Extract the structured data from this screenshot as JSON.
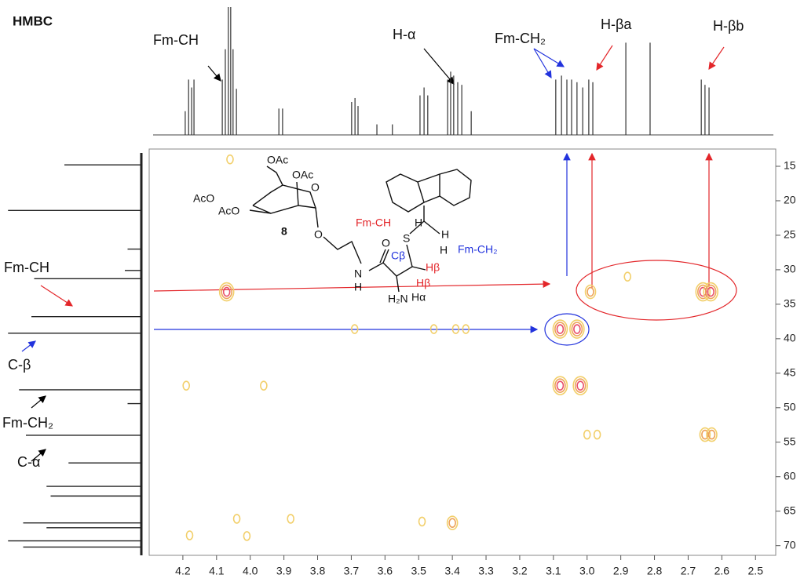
{
  "chart_data": {
    "type": "hmbc",
    "title": "HMBC",
    "xlim": [
      4.3,
      2.44
    ],
    "xticks": [
      4.2,
      4.1,
      {
        "value": 4,
        "label": "4.0"
      },
      3.9,
      3.8,
      3.7,
      3.6,
      3.5,
      3.4,
      3.3,
      3.2,
      3.1,
      {
        "value": 3,
        "label": "3.0"
      },
      2.9,
      2.8,
      2.7,
      2.6,
      2.5
    ],
    "ylim": [
      12.5,
      71.4
    ],
    "yticks": [
      15,
      20,
      25,
      30,
      35,
      40,
      45,
      50,
      55,
      60,
      65,
      70
    ],
    "contour_colors": [
      "#f2cf6a",
      "#eda25a",
      "#e8506a"
    ],
    "peaks": {
      "x": [
        4.06,
        4.07,
        3.08,
        3.03,
        2.99,
        2.656,
        2.633,
        2.88,
        3.69,
        3.455,
        3.39,
        3.36,
        4.19,
        3.96,
        3.08,
        3.02,
        3.0,
        2.97,
        2.65,
        2.63,
        4.04,
        3.88,
        3.49,
        3.4,
        4.18,
        4.01
      ],
      "y": [
        14.0,
        33.2,
        38.6,
        38.6,
        33.2,
        33.2,
        33.2,
        31.0,
        38.6,
        38.6,
        38.6,
        38.6,
        46.8,
        46.8,
        46.8,
        46.8,
        53.9,
        53.9,
        53.9,
        53.9,
        66.1,
        66.1,
        66.5,
        66.7,
        68.5,
        68.6
      ],
      "levels": [
        1,
        3,
        3,
        3,
        2,
        3,
        3,
        1,
        1,
        1,
        1,
        1,
        1,
        1,
        3,
        3,
        1,
        1,
        2,
        2,
        1,
        1,
        1,
        2,
        1,
        1
      ]
    },
    "proton_spectrum": {
      "x": [
        4.193,
        4.183,
        4.174,
        4.167,
        4.083,
        4.074,
        4.065,
        4.058,
        4.051,
        4.041,
        3.915,
        3.904,
        3.699,
        3.689,
        3.68,
        3.624,
        3.578,
        3.496,
        3.484,
        3.473,
        3.414,
        3.405,
        3.396,
        3.384,
        3.372,
        3.344,
        3.093,
        3.076,
        3.06,
        3.046,
        3.03,
        3.013,
        2.995,
        2.983,
        2.885,
        2.813,
        2.661,
        2.65,
        2.638
      ],
      "intensity": [
        0.18,
        0.42,
        0.36,
        0.42,
        0.42,
        0.65,
        0.97,
        0.97,
        0.65,
        0.35,
        0.2,
        0.2,
        0.25,
        0.28,
        0.22,
        0.08,
        0.08,
        0.3,
        0.36,
        0.3,
        0.42,
        0.48,
        0.45,
        0.4,
        0.38,
        0.18,
        0.42,
        0.45,
        0.42,
        0.42,
        0.4,
        0.36,
        0.42,
        0.4,
        0.7,
        0.7,
        0.42,
        0.38,
        0.36
      ]
    },
    "carbon_spectrum": {
      "y": [
        14.8,
        21.4,
        27.0,
        30.1,
        31.3,
        36.8,
        39.2,
        47.4,
        49.4,
        54.0,
        58.0,
        61.4,
        62.8,
        66.7,
        67.4,
        69.3,
        70.2
      ],
      "intensity": [
        0.56,
        0.97,
        0.1,
        0.12,
        0.78,
        0.8,
        0.97,
        0.89,
        0.1,
        0.84,
        0.53,
        0.69,
        0.66,
        0.86,
        0.69,
        0.97,
        0.86
      ]
    },
    "annotations": [
      "Fm-CH",
      "H-α",
      "Fm-CH₂",
      "H-βa",
      "H-βb",
      "Fm-CH",
      "C-β",
      "Fm-CH₂",
      "C-α"
    ],
    "structure_labels": [
      "OAc",
      "OAc",
      "AcO",
      "AcO",
      "O",
      "8",
      "O",
      "O",
      "N",
      "H",
      "H₂N",
      "Hα",
      "Cβ",
      "Hβ",
      "Hβ",
      "S",
      "H",
      "H",
      "H",
      "Fm-CH",
      "Fm-CH₂"
    ]
  }
}
